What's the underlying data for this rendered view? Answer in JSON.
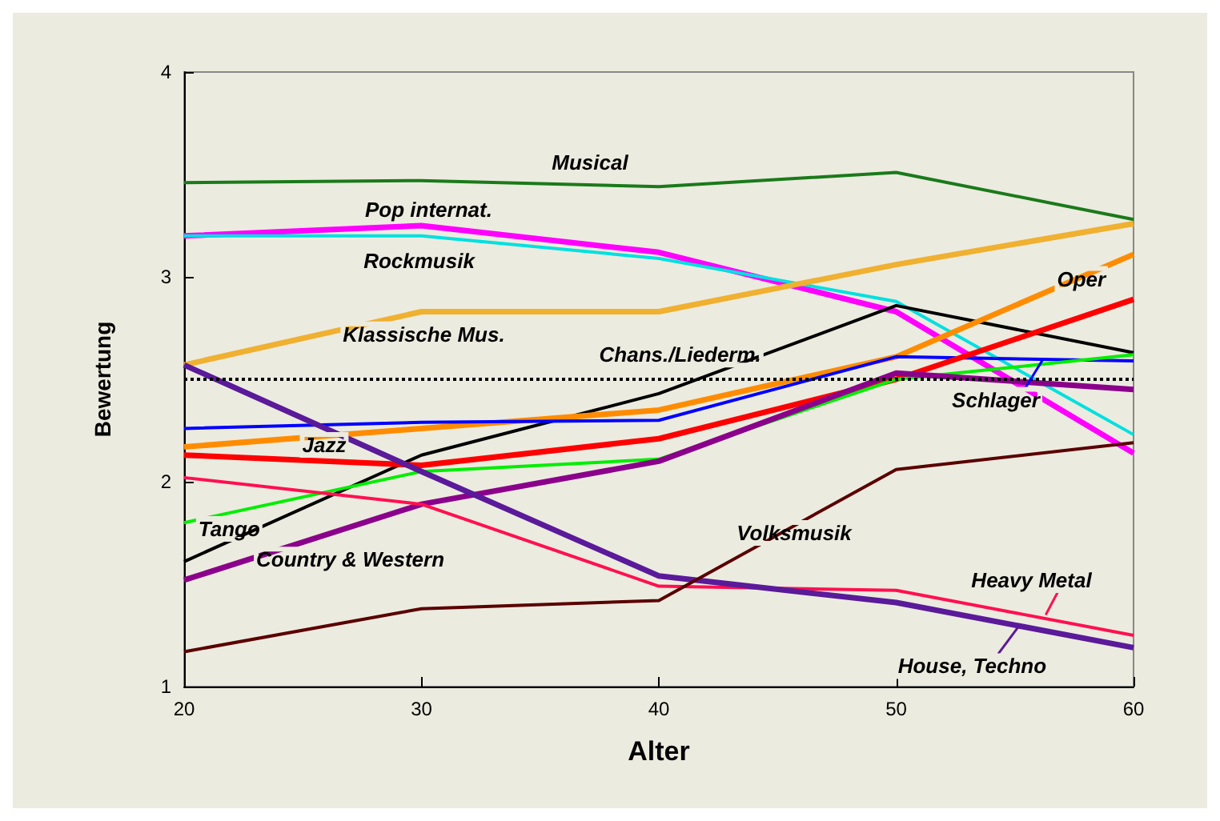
{
  "chart_data": {
    "type": "line",
    "xlabel": "Alter",
    "ylabel": "Bewertung",
    "x": [
      20,
      30,
      40,
      50,
      60
    ],
    "xlim": [
      20,
      60
    ],
    "xticks": [
      20,
      30,
      40,
      50,
      60
    ],
    "ylim": [
      1,
      4
    ],
    "yticks": [
      1,
      2,
      3,
      4
    ],
    "grid": false,
    "marker": "none",
    "legend": "bottom right",
    "series": [
      {
        "name": "Musical",
        "color": "#1a7a1a",
        "values": [
          3.46,
          3.47,
          3.44,
          3.51,
          3.28
        ]
      },
      {
        "name": "Pop internat.",
        "color": "#ff00ff",
        "values": [
          3.2,
          3.25,
          3.12,
          2.83,
          2.14
        ]
      },
      {
        "name": "Rockmusik",
        "color": "#00e0e0",
        "values": [
          3.2,
          3.2,
          3.09,
          2.88,
          2.23
        ]
      },
      {
        "name": "Klassische Mus.",
        "color": "#f0b030",
        "values": [
          2.57,
          2.83,
          2.83,
          3.06,
          3.26
        ]
      },
      {
        "name": "Chans./Liederm.",
        "color": "#000000",
        "values": [
          1.61,
          2.13,
          2.43,
          2.86,
          2.63
        ]
      },
      {
        "name": "Oper",
        "color": "#ff8c00",
        "values": [
          2.17,
          2.26,
          2.35,
          2.61,
          3.11
        ]
      },
      {
        "name": "Schlager",
        "color": "#0000ff",
        "values": [
          2.26,
          2.29,
          2.3,
          2.61,
          2.59
        ]
      },
      {
        "name": "Jazz",
        "color": "#ff0000",
        "values": [
          2.13,
          2.08,
          2.21,
          2.5,
          2.89
        ]
      },
      {
        "name": "Tango",
        "color": "#00ee00",
        "values": [
          1.8,
          2.05,
          2.11,
          2.5,
          2.62
        ]
      },
      {
        "name": "Country & Western",
        "color": "#8b008b",
        "values": [
          1.52,
          1.89,
          2.1,
          2.53,
          2.45
        ]
      },
      {
        "name": "Heavy Metal",
        "color": "#ff1050",
        "values": [
          2.02,
          1.89,
          1.49,
          1.47,
          1.25
        ]
      },
      {
        "name": "House, Techno",
        "color": "#5a1a9a",
        "values": [
          2.57,
          2.05,
          1.54,
          1.41,
          1.19
        ]
      },
      {
        "name": "Volksmusik",
        "color": "#5a0000",
        "values": [
          1.17,
          1.38,
          1.42,
          2.06,
          2.19
        ]
      }
    ],
    "ref_lines": [
      {
        "axis": "y",
        "value": 2.5,
        "color": "#000000",
        "line_style": "dotted"
      }
    ]
  }
}
